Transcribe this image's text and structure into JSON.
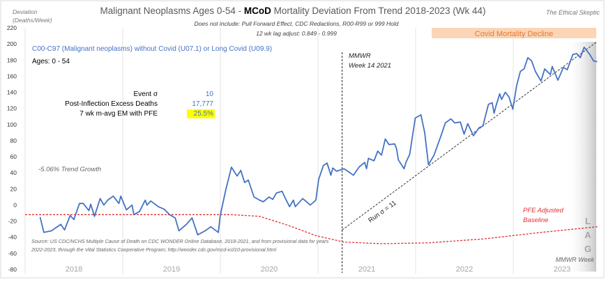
{
  "chart_data": {
    "type": "line",
    "title_prefix": "Malignant Neoplasms Ages 0-54 - ",
    "title_bold": "MCoD",
    "title_suffix": " Mortality Deviation From Trend  2018-2023 (Wk 44)",
    "brand": "The Ethical Skeptic",
    "subtitle_1": "Does not include: Pull Forward Effect,  CDC Redactions, R00-R99 or 999 Hold",
    "subtitle_2": "12 wk lag adjust: 0.849 - 0.999",
    "ylabel_1": "Deviation",
    "ylabel_2": "(Deaths/Week)",
    "xlabel": "MMWR Week",
    "ylim": [
      -80,
      220
    ],
    "yticks": [
      220,
      200,
      180,
      160,
      140,
      120,
      100,
      80,
      60,
      40,
      20,
      0,
      -20,
      -40,
      -60,
      -80
    ],
    "year_labels": [
      "2018",
      "2019",
      "2020",
      "2021",
      "2022",
      "2023"
    ],
    "x_unit": "weeks since 2018 week 1",
    "series_label": "C00-C97 (Malignant neoplasms) without Covid (U07.1) or Long Covid (U09.9)",
    "ages_label": "Ages: 0 - 54",
    "series_color": "#4472c4",
    "series": [
      {
        "name": "Mortality deviation",
        "points": [
          [
            8,
            -15
          ],
          [
            10,
            -34
          ],
          [
            14,
            -32
          ],
          [
            19,
            -24
          ],
          [
            21,
            -31
          ],
          [
            24,
            -13
          ],
          [
            26,
            -18
          ],
          [
            29,
            2
          ],
          [
            31,
            2
          ],
          [
            34,
            -7
          ],
          [
            35,
            1
          ],
          [
            37,
            -14
          ],
          [
            40,
            8
          ],
          [
            42,
            0
          ],
          [
            44,
            6
          ],
          [
            47,
            11
          ],
          [
            50,
            2
          ],
          [
            51,
            11
          ],
          [
            54,
            -6
          ],
          [
            57,
            0
          ],
          [
            58,
            -12
          ],
          [
            61,
            -8
          ],
          [
            64,
            6
          ],
          [
            65,
            0
          ],
          [
            67,
            5
          ],
          [
            71,
            -2
          ],
          [
            74,
            -5
          ],
          [
            77,
            -12
          ],
          [
            80,
            -16
          ],
          [
            82,
            -32
          ],
          [
            86,
            -24
          ],
          [
            89,
            -16
          ],
          [
            92,
            -37
          ],
          [
            96,
            -32
          ],
          [
            99,
            -27
          ],
          [
            103,
            -34
          ],
          [
            104,
            -13
          ],
          [
            107,
            19
          ],
          [
            110,
            47
          ],
          [
            113,
            36
          ],
          [
            115,
            43
          ],
          [
            117,
            28
          ],
          [
            119,
            31
          ],
          [
            122,
            10
          ],
          [
            125,
            6
          ],
          [
            127,
            4
          ],
          [
            130,
            10
          ],
          [
            132,
            7
          ],
          [
            134,
            15
          ],
          [
            137,
            17
          ],
          [
            139,
            7
          ],
          [
            141,
            -2
          ],
          [
            143,
            6
          ],
          [
            144,
            -2
          ],
          [
            148,
            8
          ],
          [
            150,
            4
          ],
          [
            152,
            0
          ],
          [
            155,
            6
          ],
          [
            156.5,
            32
          ],
          [
            159,
            49
          ],
          [
            161,
            52
          ],
          [
            163,
            37
          ],
          [
            164,
            46
          ],
          [
            166,
            42
          ],
          [
            170,
            45
          ],
          [
            172,
            42
          ],
          [
            175,
            37
          ],
          [
            178,
            47
          ],
          [
            181,
            53
          ],
          [
            182,
            45
          ],
          [
            183,
            58
          ],
          [
            186,
            55
          ],
          [
            188,
            67
          ],
          [
            190,
            62
          ],
          [
            192,
            82
          ],
          [
            194,
            75
          ],
          [
            197,
            76
          ],
          [
            198,
            70
          ],
          [
            199,
            56
          ],
          [
            202,
            45
          ],
          [
            203,
            53
          ],
          [
            205,
            63
          ],
          [
            208,
            108
          ],
          [
            211,
            112
          ],
          [
            213,
            90
          ],
          [
            215,
            50
          ],
          [
            218,
            62
          ],
          [
            222,
            88
          ],
          [
            224,
            102
          ],
          [
            227,
            107
          ],
          [
            229,
            102
          ],
          [
            232,
            103
          ],
          [
            234,
            88
          ],
          [
            236,
            101
          ],
          [
            239,
            86
          ],
          [
            242,
            96
          ],
          [
            244,
            98
          ],
          [
            247,
            125
          ],
          [
            249,
            127
          ],
          [
            250,
            114
          ],
          [
            251,
            123
          ],
          [
            253,
            138
          ],
          [
            254,
            131
          ],
          [
            256,
            140
          ],
          [
            258,
            134
          ],
          [
            260,
            119
          ],
          [
            262,
            148
          ],
          [
            264,
            166
          ],
          [
            266,
            169
          ],
          [
            268,
            183
          ],
          [
            270,
            179
          ],
          [
            272,
            166
          ],
          [
            275,
            154
          ],
          [
            277,
            169
          ],
          [
            280,
            162
          ],
          [
            281,
            172
          ],
          [
            284,
            155
          ],
          [
            287,
            171
          ],
          [
            289,
            168
          ],
          [
            292,
            187
          ],
          [
            294,
            188
          ],
          [
            296,
            183
          ],
          [
            298,
            196
          ],
          [
            301,
            187
          ],
          [
            303,
            179
          ],
          [
            305,
            178
          ]
        ]
      },
      {
        "name": "PFE Adjusted Baseline",
        "color": "#e03030",
        "points": [
          [
            0,
            -12
          ],
          [
            110,
            -12
          ],
          [
            125,
            -14
          ],
          [
            140,
            -25
          ],
          [
            155,
            -38
          ],
          [
            170,
            -46
          ],
          [
            190,
            -48
          ],
          [
            215,
            -47
          ],
          [
            245,
            -42
          ],
          [
            275,
            -34
          ],
          [
            305,
            -27
          ]
        ]
      },
      {
        "name": "Run trend",
        "color": "#333333",
        "points": [
          [
            169,
            -31
          ],
          [
            305,
            203
          ]
        ]
      }
    ],
    "annotations": {
      "mmwr_line_1": "MMWR",
      "mmwr_line_2": "Week 14 2021",
      "mmwr_week": 169,
      "trend_growth": "-5.06% Trend Growth",
      "run_sigma": "Run σ = 11",
      "pfe_1": "PFE Adjusted",
      "pfe_2": "Baseline",
      "covid_decline": "Covid Mortality Decline",
      "lag": [
        "L",
        "A",
        "G"
      ],
      "source_1": "Source: US CDC/NCHS Multiple Cause of Death on CDC WONDER Online Database, 2018-2021, and from provisional data for years",
      "source_2": "2022-2023, through the Vital Statistics Cooperative Program; http://wonder.cdc.gov/mcd-icd10-provisional.html"
    },
    "stats": [
      {
        "label": "Event σ",
        "value": "10"
      },
      {
        "label": "Post-Inflection Excess Deaths",
        "value": "17,777"
      },
      {
        "label": "7 wk m-avg EM with PFE",
        "value": "25.5%",
        "highlight": "#ffff00"
      }
    ]
  }
}
